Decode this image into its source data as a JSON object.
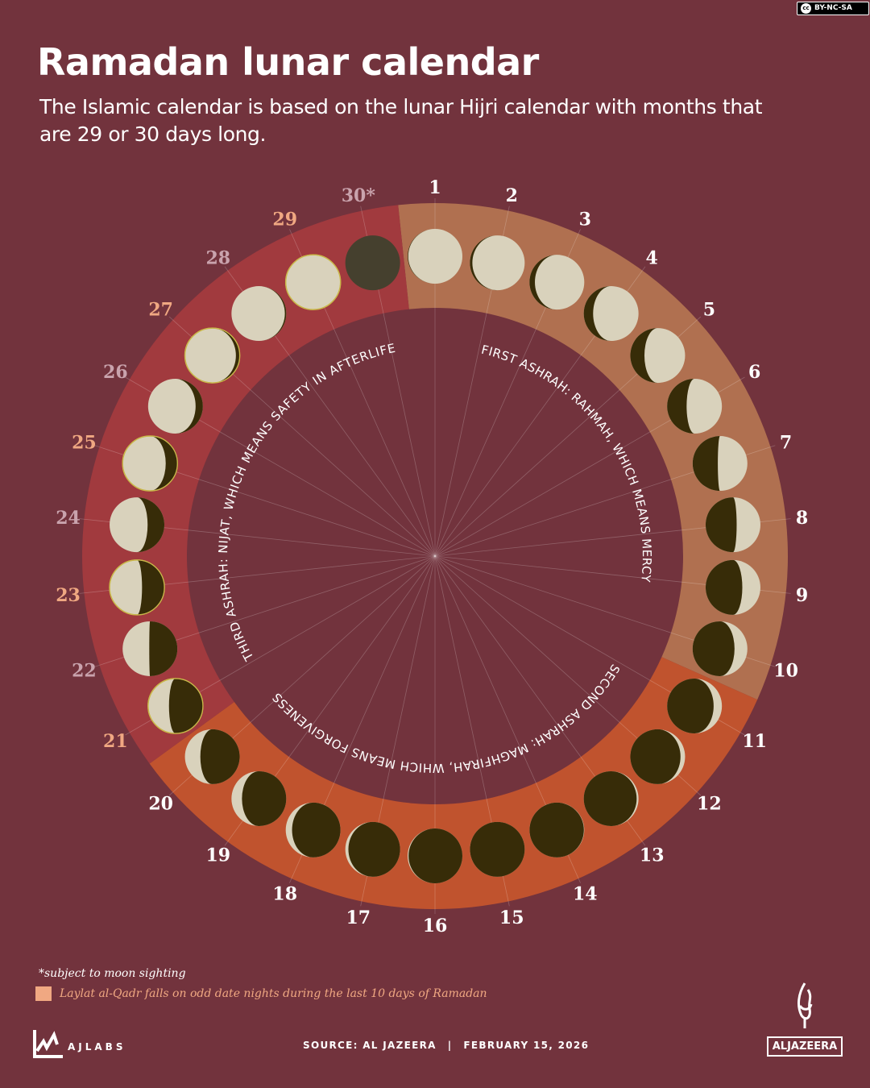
{
  "license_badge": "BY-NC-SA",
  "title": "Ramadan lunar calendar",
  "subtitle": "The Islamic calendar is based on the lunar Hijri calendar with months that are 29 or 30 days long.",
  "colors": {
    "background": "#72333d",
    "first_ashrah": "#b07050",
    "second_ashrah": "#c0532e",
    "third_ashrah": "#a13a3e",
    "moon_dark": "#372c08",
    "moon_lit": "#d9d2bc",
    "laylat_al_qadr": "#f0a882",
    "even_last_ten": "#c9a3ad",
    "moon_outline": "#c9b84a",
    "uncertain_moon": "#45402e"
  },
  "ashrahs": [
    {
      "label": "FIRST ASHRAH: RAHMAH, WHICH MEANS MERCY",
      "days": [
        1,
        10
      ]
    },
    {
      "label": "SECOND ASHRAH: MAGHFIRAH, WHICH MEANS FORGIVENESS",
      "days": [
        11,
        20
      ]
    },
    {
      "label": "THIRD ASHRAH: NIJAT, WHICH MEANS SAFETY IN AFTERLIFE",
      "days": [
        21,
        30
      ]
    }
  ],
  "days": [
    {
      "label": "1"
    },
    {
      "label": "2"
    },
    {
      "label": "3"
    },
    {
      "label": "4"
    },
    {
      "label": "5"
    },
    {
      "label": "6"
    },
    {
      "label": "7"
    },
    {
      "label": "8"
    },
    {
      "label": "9"
    },
    {
      "label": "10"
    },
    {
      "label": "11"
    },
    {
      "label": "12"
    },
    {
      "label": "13"
    },
    {
      "label": "14"
    },
    {
      "label": "15"
    },
    {
      "label": "16"
    },
    {
      "label": "17"
    },
    {
      "label": "18"
    },
    {
      "label": "19"
    },
    {
      "label": "20"
    },
    {
      "label": "21",
      "laylat_al_qadr": true
    },
    {
      "label": "22"
    },
    {
      "label": "23",
      "laylat_al_qadr": true
    },
    {
      "label": "24"
    },
    {
      "label": "25",
      "laylat_al_qadr": true
    },
    {
      "label": "26"
    },
    {
      "label": "27",
      "laylat_al_qadr": true
    },
    {
      "label": "28"
    },
    {
      "label": "29",
      "laylat_al_qadr": true
    },
    {
      "label": "30*",
      "uncertain": true
    }
  ],
  "footnote": "*subject to moon sighting",
  "legend": "Laylat al-Qadr falls on odd date nights during the last 10 days of Ramadan",
  "ajlabs": "AJLABS",
  "source": "SOURCE: AL JAZEERA",
  "separator": "|",
  "date": "FEBRUARY 15, 2026",
  "brand": "ALJAZEERA"
}
